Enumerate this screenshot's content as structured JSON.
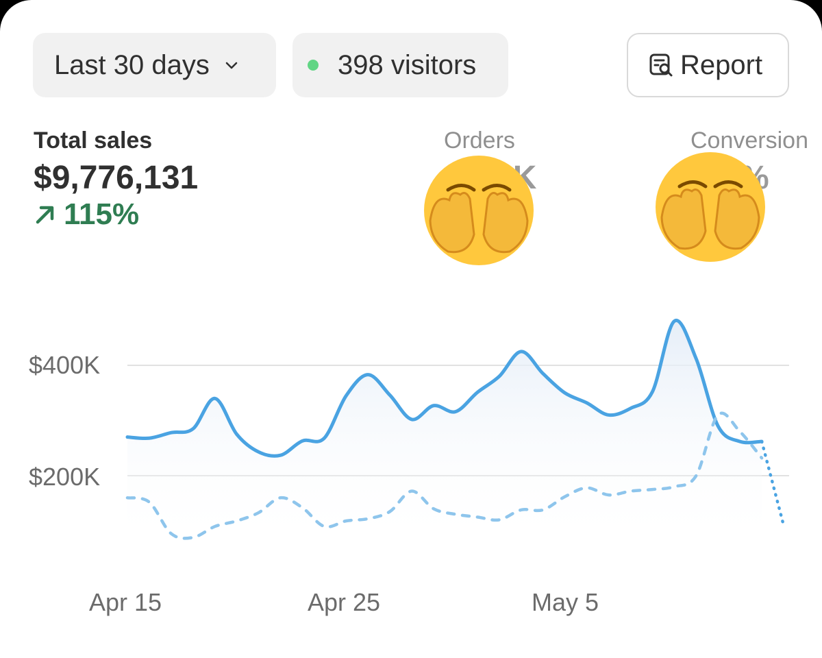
{
  "filters": {
    "range_label": "Last 30 days",
    "visitors_label": "398 visitors",
    "report_label": "Report"
  },
  "metrics": {
    "total_sales": {
      "label": "Total sales",
      "value": "$9,776,131",
      "change": "115%"
    },
    "orders": {
      "label": "Orders",
      "value": "2K"
    },
    "conversion": {
      "label": "Conversion",
      "value": "%"
    }
  },
  "colors": {
    "accent": "#4aa3e2",
    "positive": "#2f7d52",
    "visitor_dot": "#61d584"
  },
  "chart_data": {
    "type": "line",
    "title": "",
    "xlabel": "",
    "ylabel": "",
    "x_ticks": [
      "Apr 15",
      "Apr 25",
      "May 5"
    ],
    "y_ticks": [
      "$400K",
      "$200K"
    ],
    "ylim": [
      0,
      500000
    ],
    "grid": true,
    "x": [
      "Apr 15",
      "Apr 16",
      "Apr 17",
      "Apr 18",
      "Apr 19",
      "Apr 20",
      "Apr 21",
      "Apr 22",
      "Apr 23",
      "Apr 24",
      "Apr 25",
      "Apr 26",
      "Apr 27",
      "Apr 28",
      "Apr 29",
      "Apr 30",
      "May 1",
      "May 2",
      "May 3",
      "May 4",
      "May 5",
      "May 6",
      "May 7",
      "May 8",
      "May 9",
      "May 10",
      "May 11",
      "May 12",
      "May 13",
      "May 14",
      "May 15"
    ],
    "series": [
      {
        "style": "solid",
        "values": [
          270000,
          268000,
          278000,
          285000,
          340000,
          275000,
          243000,
          237000,
          263000,
          268000,
          345000,
          383000,
          346000,
          302000,
          327000,
          316000,
          351000,
          380000,
          425000,
          385000,
          350000,
          332000,
          310000,
          322000,
          352000,
          480000,
          412000,
          290000,
          262000,
          262000,
          null
        ]
      },
      {
        "style": "dashed",
        "values": [
          160000,
          152000,
          95000,
          88000,
          108000,
          118000,
          133000,
          160000,
          142000,
          108000,
          118000,
          122000,
          135000,
          172000,
          140000,
          130000,
          125000,
          120000,
          138000,
          138000,
          162000,
          178000,
          165000,
          172000,
          175000,
          180000,
          200000,
          310000,
          280000,
          232000,
          null
        ]
      },
      {
        "style": "dotted",
        "values": [
          null,
          null,
          null,
          null,
          null,
          null,
          null,
          null,
          null,
          null,
          null,
          null,
          null,
          null,
          null,
          null,
          null,
          null,
          null,
          null,
          null,
          null,
          null,
          null,
          null,
          null,
          null,
          null,
          null,
          262000,
          110000
        ]
      }
    ]
  }
}
